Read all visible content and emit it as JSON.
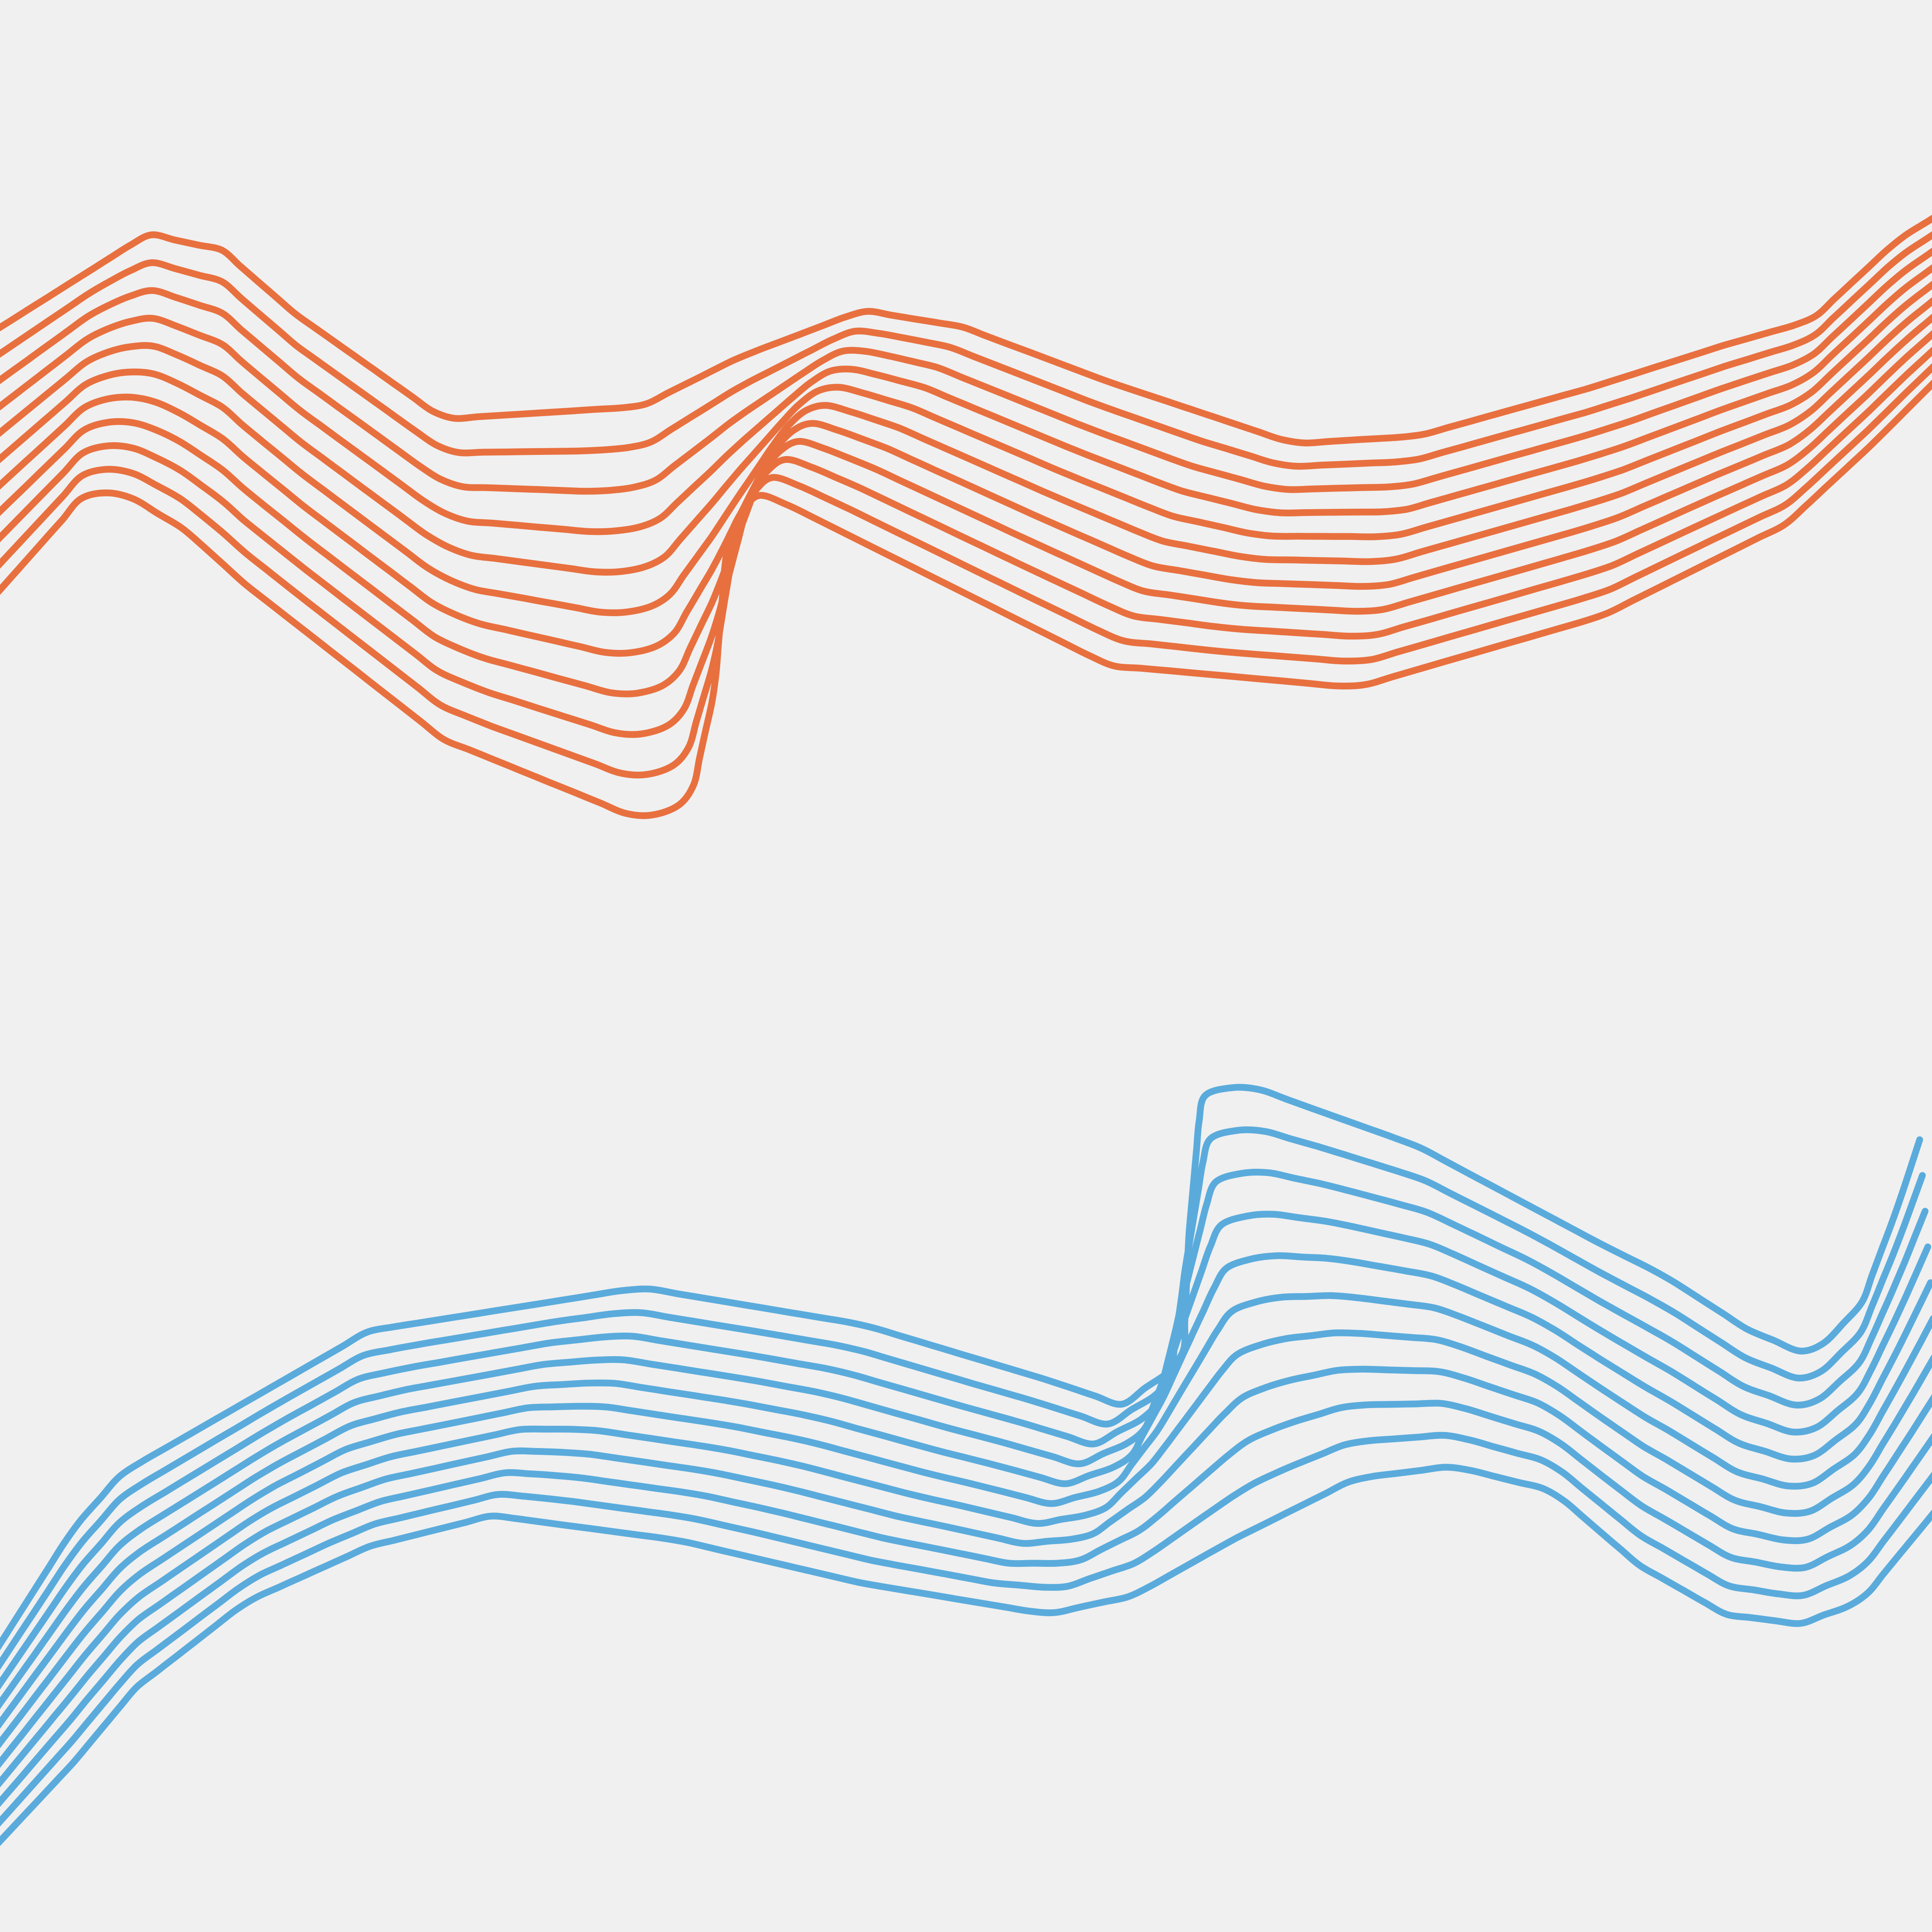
{
  "colors": {
    "background": "#f0f0f0",
    "upper_wave": "#e8703f",
    "lower_wave": "#5aabdc"
  },
  "groups": [
    {
      "name": "upper-wave-group",
      "color_key": "upper_wave",
      "line_count": 11
    },
    {
      "name": "lower-wave-group",
      "color_key": "lower_wave",
      "line_count": 11
    }
  ]
}
